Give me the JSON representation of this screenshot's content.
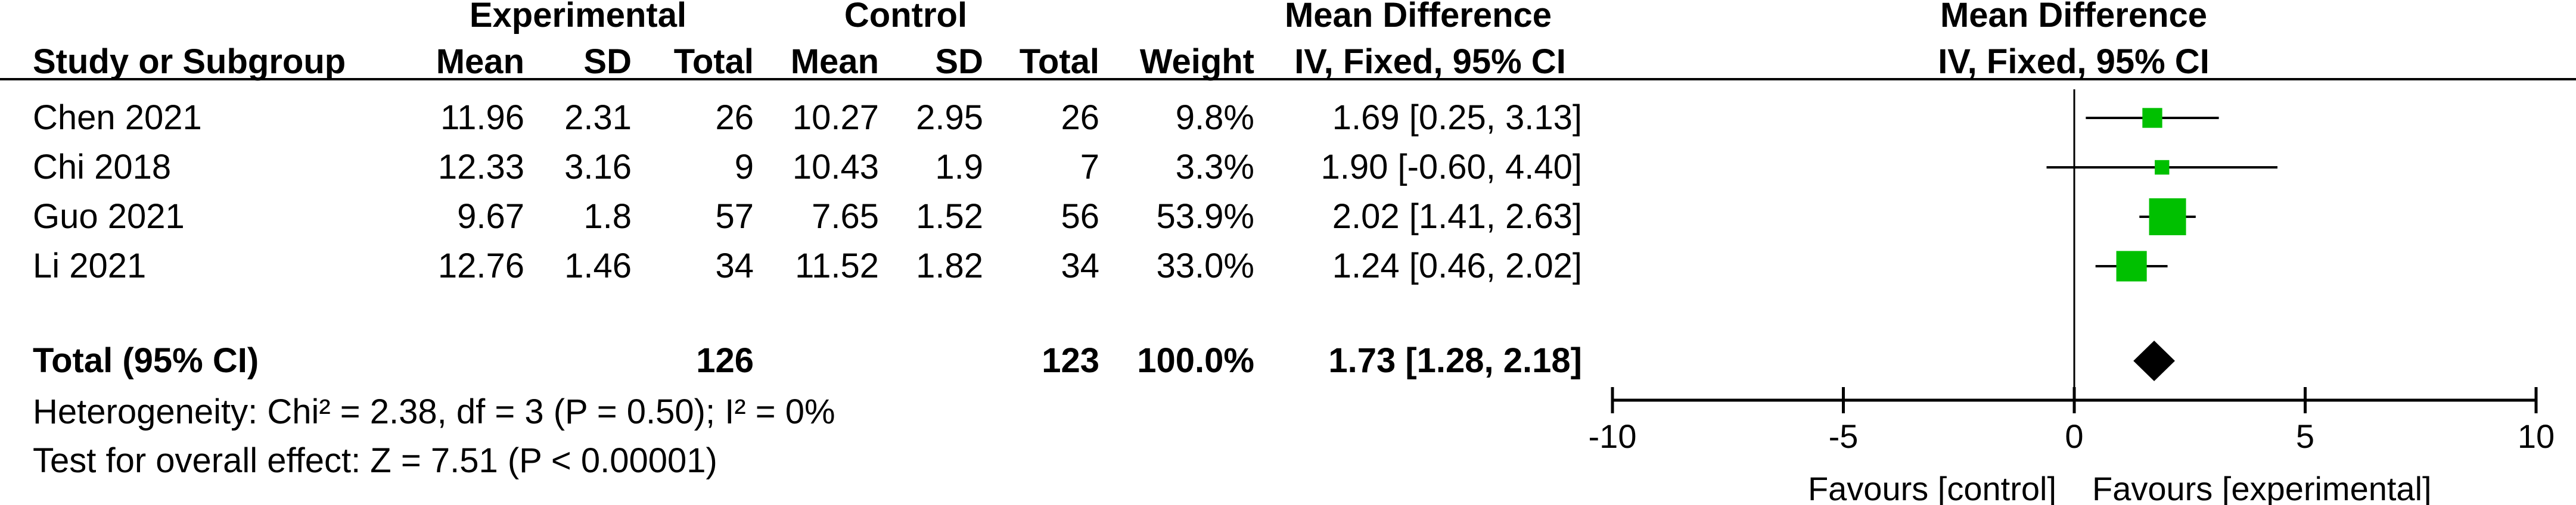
{
  "header": {
    "group_experimental": "Experimental",
    "group_control": "Control",
    "group_md": "Mean Difference",
    "group_md_plot": "Mean Difference",
    "col_study": "Study or Subgroup",
    "col_exp_mean": "Mean",
    "col_exp_sd": "SD",
    "col_exp_total": "Total",
    "col_ctl_mean": "Mean",
    "col_ctl_sd": "SD",
    "col_ctl_total": "Total",
    "col_weight": "Weight",
    "col_md": "IV, Fixed, 95% CI",
    "col_md_plot": "IV, Fixed, 95% CI"
  },
  "studies": [
    {
      "name": "Chen 2021",
      "exp_mean": "11.96",
      "exp_sd": "2.31",
      "exp_total": "26",
      "ctl_mean": "10.27",
      "ctl_sd": "2.95",
      "ctl_total": "26",
      "weight": "9.8%",
      "md": "1.69 [0.25, 3.13]"
    },
    {
      "name": "Chi 2018",
      "exp_mean": "12.33",
      "exp_sd": "3.16",
      "exp_total": "9",
      "ctl_mean": "10.43",
      "ctl_sd": "1.9",
      "ctl_total": "7",
      "weight": "3.3%",
      "md": "1.90 [-0.60, 4.40]"
    },
    {
      "name": "Guo 2021",
      "exp_mean": "9.67",
      "exp_sd": "1.8",
      "exp_total": "57",
      "ctl_mean": "7.65",
      "ctl_sd": "1.52",
      "ctl_total": "56",
      "weight": "53.9%",
      "md": "2.02 [1.41, 2.63]"
    },
    {
      "name": "Li 2021",
      "exp_mean": "12.76",
      "exp_sd": "1.46",
      "exp_total": "34",
      "ctl_mean": "11.52",
      "ctl_sd": "1.82",
      "ctl_total": "34",
      "weight": "33.0%",
      "md": "1.24 [0.46, 2.02]"
    }
  ],
  "total": {
    "label": "Total (95% CI)",
    "exp_total": "126",
    "ctl_total": "123",
    "weight": "100.0%",
    "md": "1.73 [1.28, 2.18]"
  },
  "heterogeneity": "Heterogeneity: Chi² = 2.38, df = 3 (P = 0.50); I² = 0%",
  "overall_effect": "Test for overall effect: Z = 7.51 (P < 0.00001)",
  "axis": {
    "ticks": [
      "-10",
      "-5",
      "0",
      "5",
      "10"
    ],
    "favours_left": "Favours [control]",
    "favours_right": "Favours [experimental]"
  },
  "colors": {
    "square": "#00c000",
    "diamond": "#000000",
    "line": "#000000"
  },
  "chart_data": {
    "type": "scatter",
    "subtype": "forest",
    "title": "Mean Difference",
    "xlabel": "IV, Fixed, 95% CI",
    "xlim": [
      -10,
      10
    ],
    "x_ticks": [
      -10,
      -5,
      0,
      5,
      10
    ],
    "series": [
      {
        "name": "Chen 2021",
        "estimate": 1.69,
        "ci": [
          0.25,
          3.13
        ],
        "weight": 9.8
      },
      {
        "name": "Chi 2018",
        "estimate": 1.9,
        "ci": [
          -0.6,
          4.4
        ],
        "weight": 3.3
      },
      {
        "name": "Guo 2021",
        "estimate": 2.02,
        "ci": [
          1.41,
          2.63
        ],
        "weight": 53.9
      },
      {
        "name": "Li 2021",
        "estimate": 1.24,
        "ci": [
          0.46,
          2.02
        ],
        "weight": 33.0
      }
    ],
    "pooled": {
      "name": "Total (95% CI)",
      "estimate": 1.73,
      "ci": [
        1.28,
        2.18
      ],
      "weight": 100.0
    }
  }
}
